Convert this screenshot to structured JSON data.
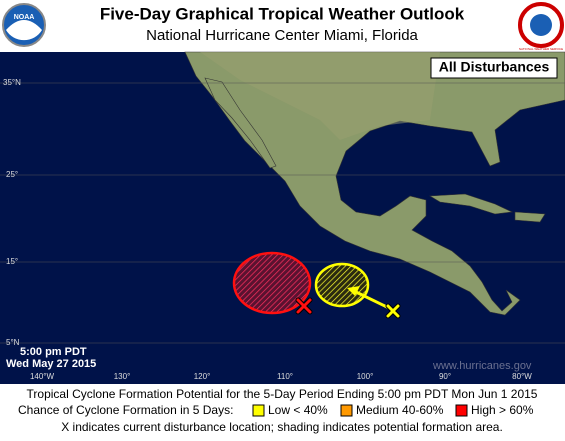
{
  "header": {
    "title": "Five-Day Graphical Tropical Weather Outlook",
    "subtitle": "National Hurricane Center  Miami, Florida",
    "logos": [
      "NOAA",
      "NATIONAL WEATHER SERVICE"
    ]
  },
  "map": {
    "label": "All Disturbances",
    "lat_labels": [
      "35°N",
      "25°",
      "15°",
      "5°N"
    ],
    "lon_labels": [
      "140°W",
      "130°",
      "120°",
      "110°",
      "100°",
      "90°",
      "80°W"
    ],
    "issued": [
      "5:00 pm PDT",
      "Wed May 27 2015"
    ],
    "watermark": "www.hurricanes.gov"
  },
  "footer": {
    "line1": "Tropical Cyclone Formation Potential for the 5-Day Period Ending 5:00 pm PDT Mon Jun 1 2015",
    "legend_title": "Chance of Cyclone Formation in 5 Days:",
    "legend": [
      {
        "label": "Low < 40%",
        "color": "#ffff00"
      },
      {
        "label": "Medium 40-60%",
        "color": "#ff9900"
      },
      {
        "label": "High > 60%",
        "color": "#ff0000"
      }
    ],
    "line3": "X indicates current disturbance location; shading indicates potential formation area."
  }
}
